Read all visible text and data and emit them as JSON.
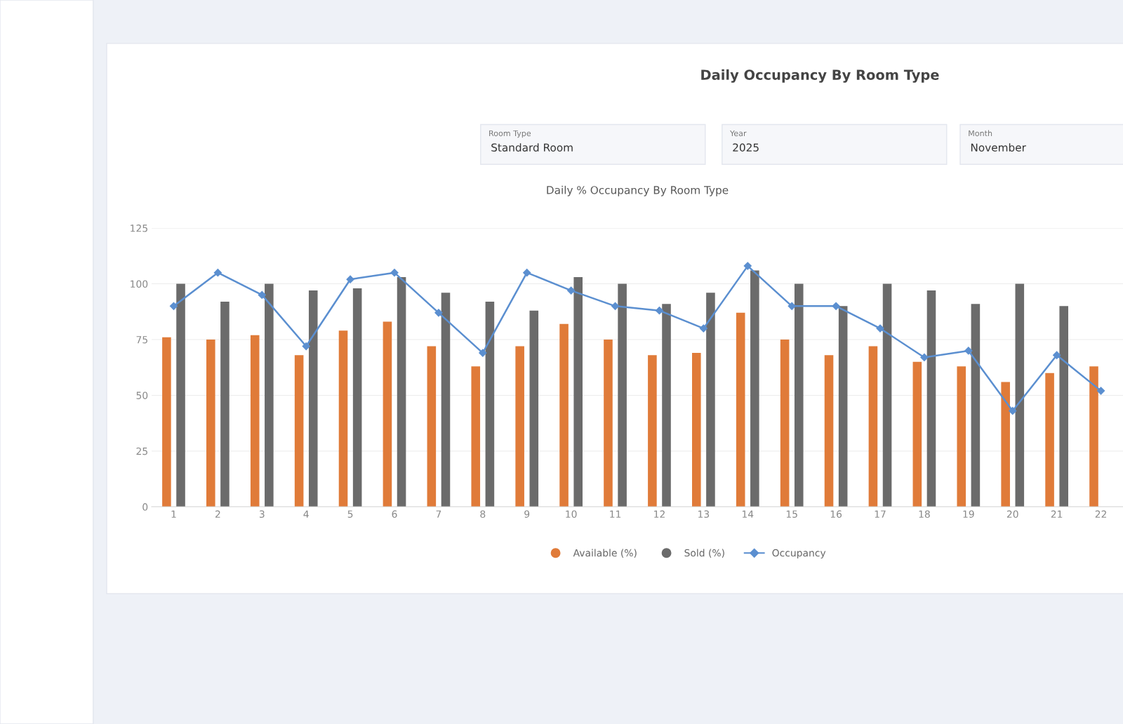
{
  "chart_data": {
    "type": "bar",
    "title": "Daily % Occupancy By Room Type",
    "annotations": [
      "Daily Occupancy By Room Type",
      "Room Type",
      "Standard Room",
      "Year",
      "2025",
      "Month",
      "November"
    ],
    "categories": [
      "1",
      "2",
      "3",
      "4",
      "5",
      "6",
      "7",
      "8",
      "9",
      "10",
      "11",
      "12",
      "13",
      "14",
      "15",
      "16",
      "17",
      "18",
      "19",
      "20",
      "21",
      "22"
    ],
    "series": [
      {
        "name": "Available (%)",
        "color": "#e07b39",
        "values": [
          76,
          75,
          77,
          68,
          79,
          83,
          72,
          63,
          72,
          82,
          75,
          68,
          69,
          87,
          75,
          68,
          72,
          65,
          63,
          56,
          60,
          63
        ]
      },
      {
        "name": "Sold (%)",
        "color": "#6b6b6b",
        "values": [
          100,
          92,
          100,
          97,
          98,
          103,
          96,
          92,
          88,
          103,
          100,
          91,
          96,
          106,
          100,
          90,
          100,
          97,
          91,
          100,
          90,
          null
        ]
      },
      {
        "name": "Occupancy",
        "type": "line",
        "color": "#5b8fd0",
        "marker": "diamond",
        "values": [
          90,
          105,
          95,
          72,
          102,
          105,
          87,
          69,
          105,
          97,
          90,
          88,
          80,
          108,
          90,
          90,
          80,
          67,
          70,
          43,
          68,
          52
        ]
      }
    ],
    "ylim": [
      0,
      125
    ],
    "yticks": [
      0,
      25,
      50,
      75,
      100,
      125
    ],
    "grid": "y",
    "legend": "bottom"
  }
}
